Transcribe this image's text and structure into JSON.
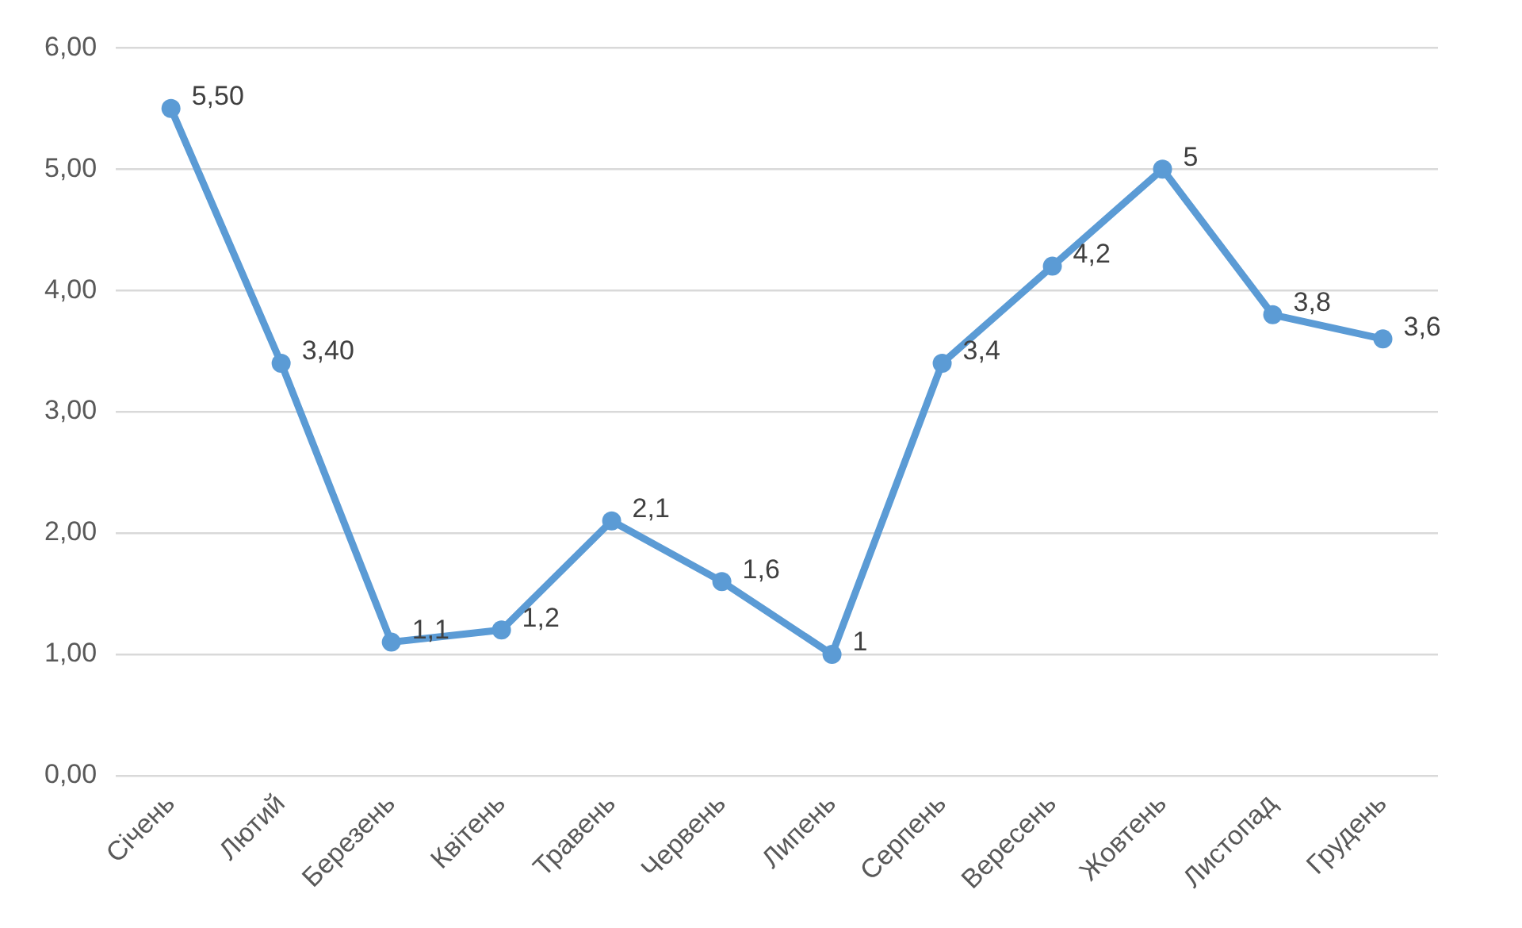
{
  "chart_data": {
    "type": "line",
    "categories": [
      "Січень",
      "Лютий",
      "Березень",
      "Квітень",
      "Травень",
      "Червень",
      "Липень",
      "Серпень",
      "Вересень",
      "Жовтень",
      "Листопад",
      "Грудень"
    ],
    "series": [
      {
        "color": "#5b9bd5",
        "values": [
          5.5,
          3.4,
          1.1,
          1.2,
          2.1,
          1.6,
          1,
          3.4,
          4.2,
          5,
          3.8,
          3.6
        ],
        "value_labels": [
          "5,50",
          "3,40",
          "1,1",
          "1,2",
          "2,1",
          "1,6",
          "1",
          "3,4",
          "4,2",
          "5",
          "3,8",
          "3,6"
        ]
      }
    ],
    "ylim": [
      0,
      6
    ],
    "yticks": [
      {
        "value": 0,
        "label": "0,00"
      },
      {
        "value": 1,
        "label": "1,00"
      },
      {
        "value": 2,
        "label": "2,00"
      },
      {
        "value": 3,
        "label": "3,00"
      },
      {
        "value": 4,
        "label": "4,00"
      },
      {
        "value": 5,
        "label": "5,00"
      },
      {
        "value": 6,
        "label": "6,00"
      }
    ],
    "grid": "y",
    "legend": false,
    "marker": "circle",
    "line_style": "solid"
  }
}
